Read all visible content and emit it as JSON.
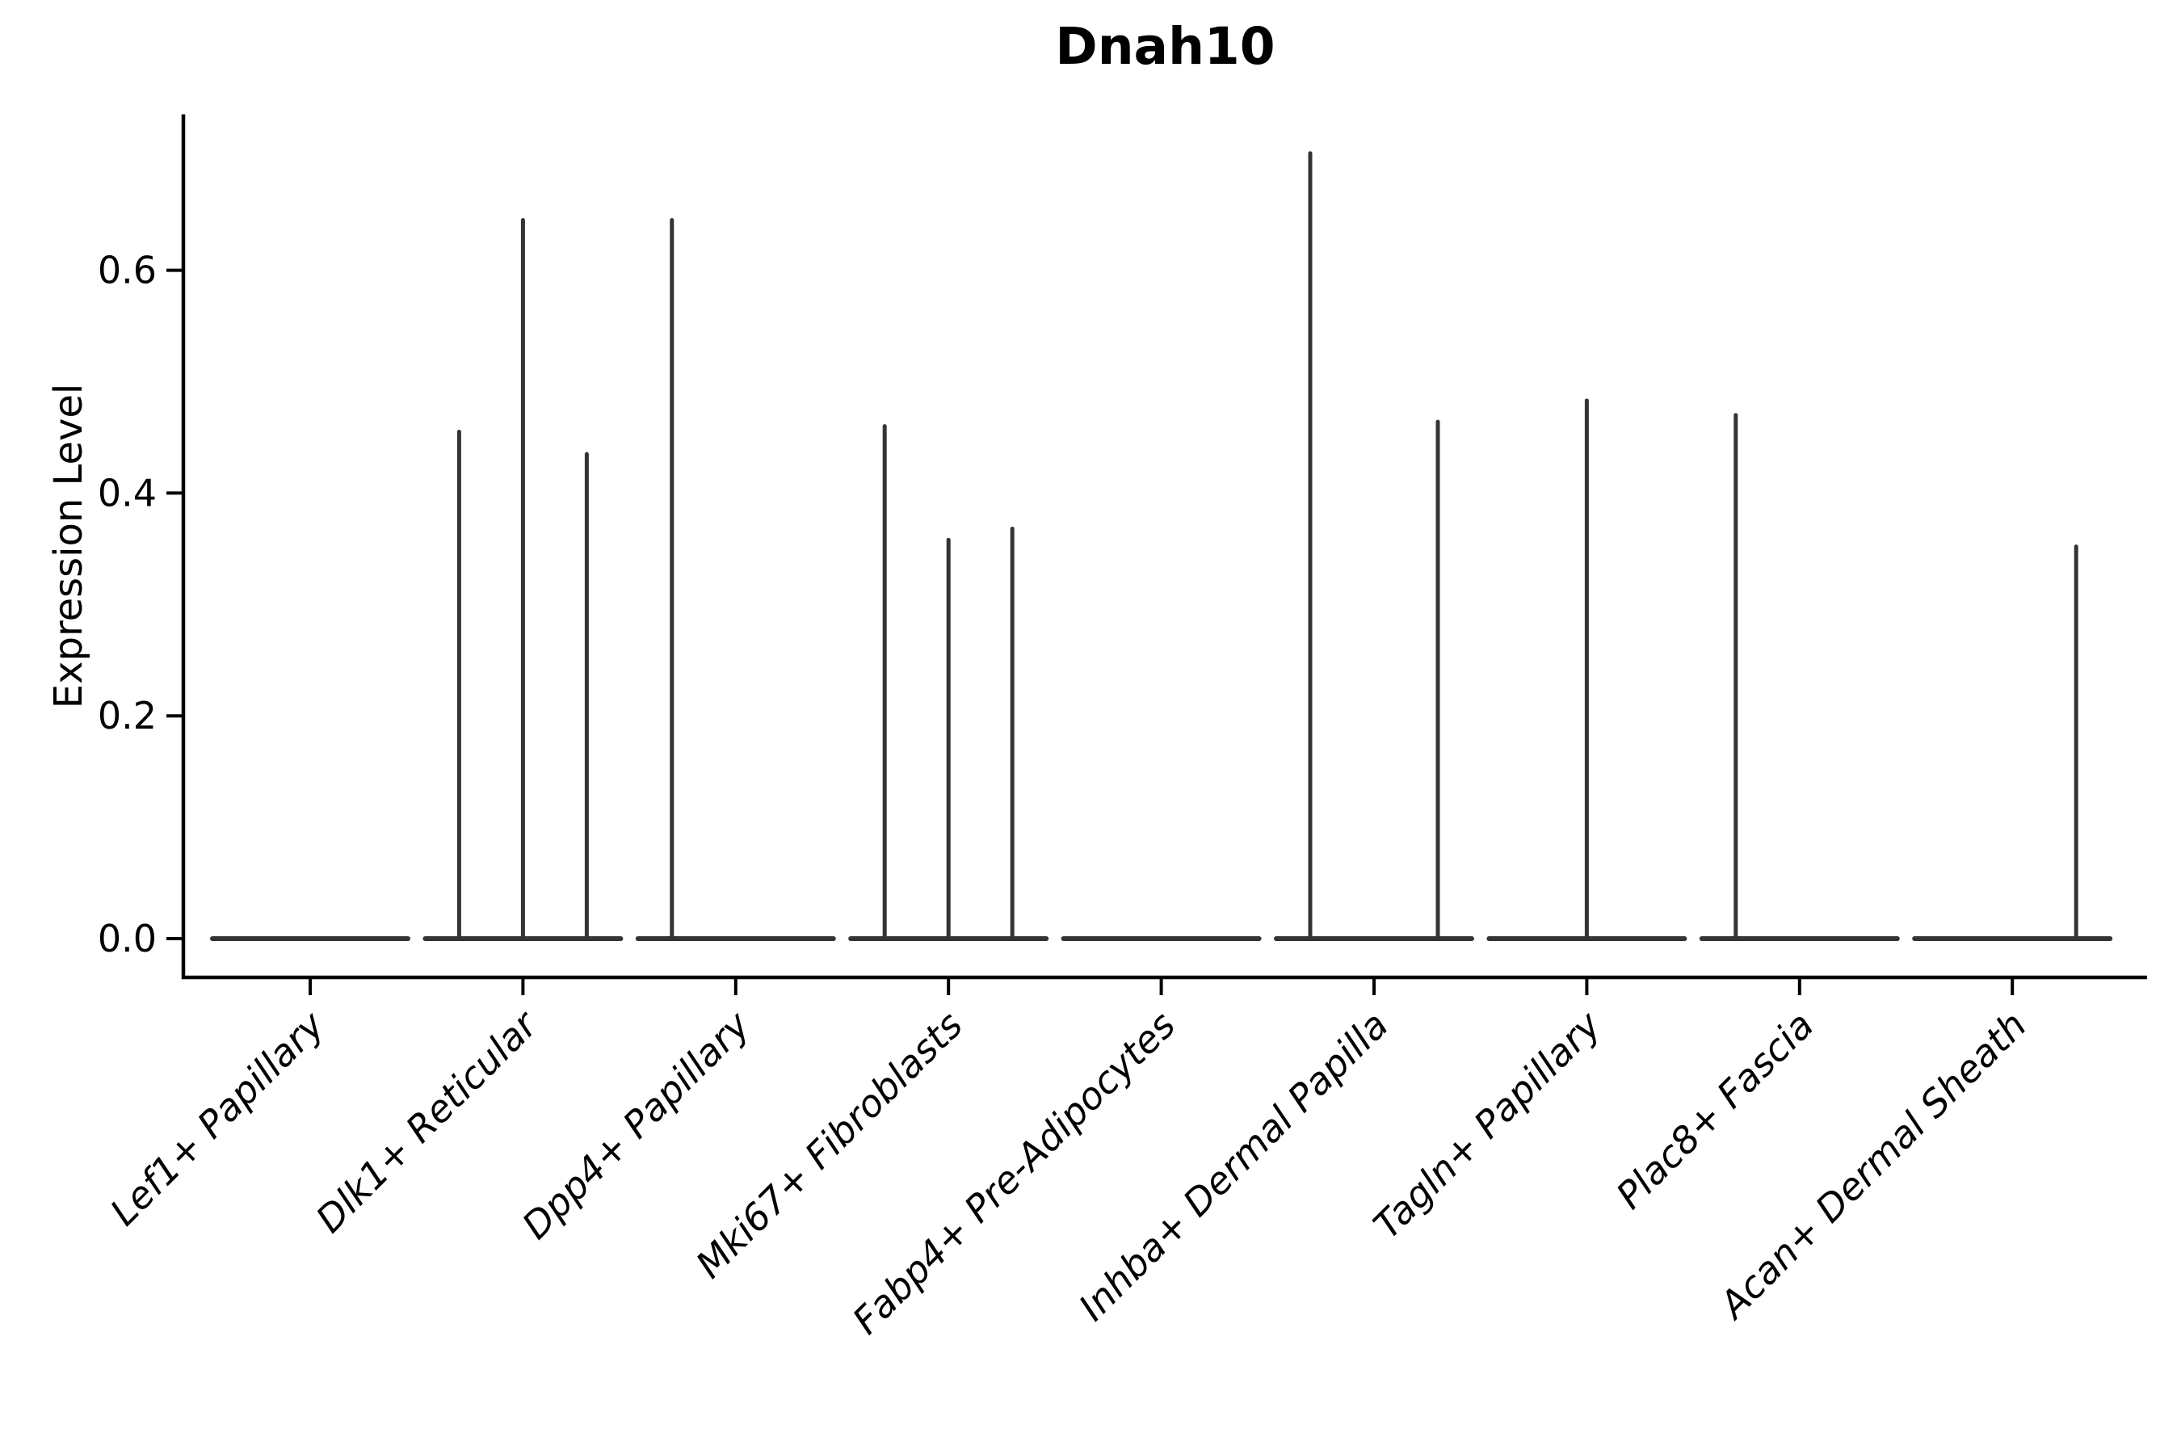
{
  "chart_data": {
    "type": "violin",
    "title": "Dnah10",
    "ylabel": "Expression Level",
    "xlabel": "",
    "ytick_labels": [
      "0.0",
      "0.2",
      "0.4",
      "0.6"
    ],
    "ytick_values": [
      0.0,
      0.2,
      0.4,
      0.6
    ],
    "ylim": [
      -0.035,
      0.74
    ],
    "grid": false,
    "legend": null,
    "note": "Seurat-style violin plot; each identity class shows a flat near-zero density bar with thin spikes (three dodged sub-violins per class) reaching the expression level of rare positive cells",
    "categories": [
      "Lef1+ Papillary",
      "Dlk1+ Reticular",
      "Dpp4+ Papillary",
      "Mki67+ Fibroblasts",
      "Fabp4+ Pre-Adipocytes",
      "Inhba+ Dermal Papilla",
      "Tagln+ Papillary",
      "Plac8+ Fascia",
      "Acan+ Dermal Sheath"
    ],
    "groups": [
      {
        "category": "Lef1+ Papillary",
        "baseline_value": 0.0,
        "spikes": []
      },
      {
        "category": "Dlk1+ Reticular",
        "baseline_value": 0.0,
        "spikes": [
          {
            "offset": "left",
            "value": 0.455
          },
          {
            "offset": "center",
            "value": 0.645
          },
          {
            "offset": "right",
            "value": 0.435
          }
        ]
      },
      {
        "category": "Dpp4+ Papillary",
        "baseline_value": 0.0,
        "spikes": [
          {
            "offset": "left",
            "value": 0.645
          }
        ]
      },
      {
        "category": "Mki67+ Fibroblasts",
        "baseline_value": 0.0,
        "spikes": [
          {
            "offset": "left",
            "value": 0.46
          },
          {
            "offset": "center",
            "value": 0.358
          },
          {
            "offset": "right",
            "value": 0.368
          }
        ]
      },
      {
        "category": "Fabp4+ Pre-Adipocytes",
        "baseline_value": 0.0,
        "spikes": []
      },
      {
        "category": "Inhba+ Dermal Papilla",
        "baseline_value": 0.0,
        "spikes": [
          {
            "offset": "left",
            "value": 0.705
          },
          {
            "offset": "right",
            "value": 0.464
          }
        ]
      },
      {
        "category": "Tagln+ Papillary",
        "baseline_value": 0.0,
        "spikes": [
          {
            "offset": "center",
            "value": 0.483
          }
        ]
      },
      {
        "category": "Plac8+ Fascia",
        "baseline_value": 0.0,
        "spikes": [
          {
            "offset": "left",
            "value": 0.47
          }
        ]
      },
      {
        "category": "Acan+ Dermal Sheath",
        "baseline_value": 0.0,
        "spikes": [
          {
            "offset": "right",
            "value": 0.352
          }
        ]
      }
    ],
    "colors": {
      "violin_stroke": "#343434",
      "axis": "#000000",
      "text": "#000000",
      "background": "#ffffff"
    }
  }
}
